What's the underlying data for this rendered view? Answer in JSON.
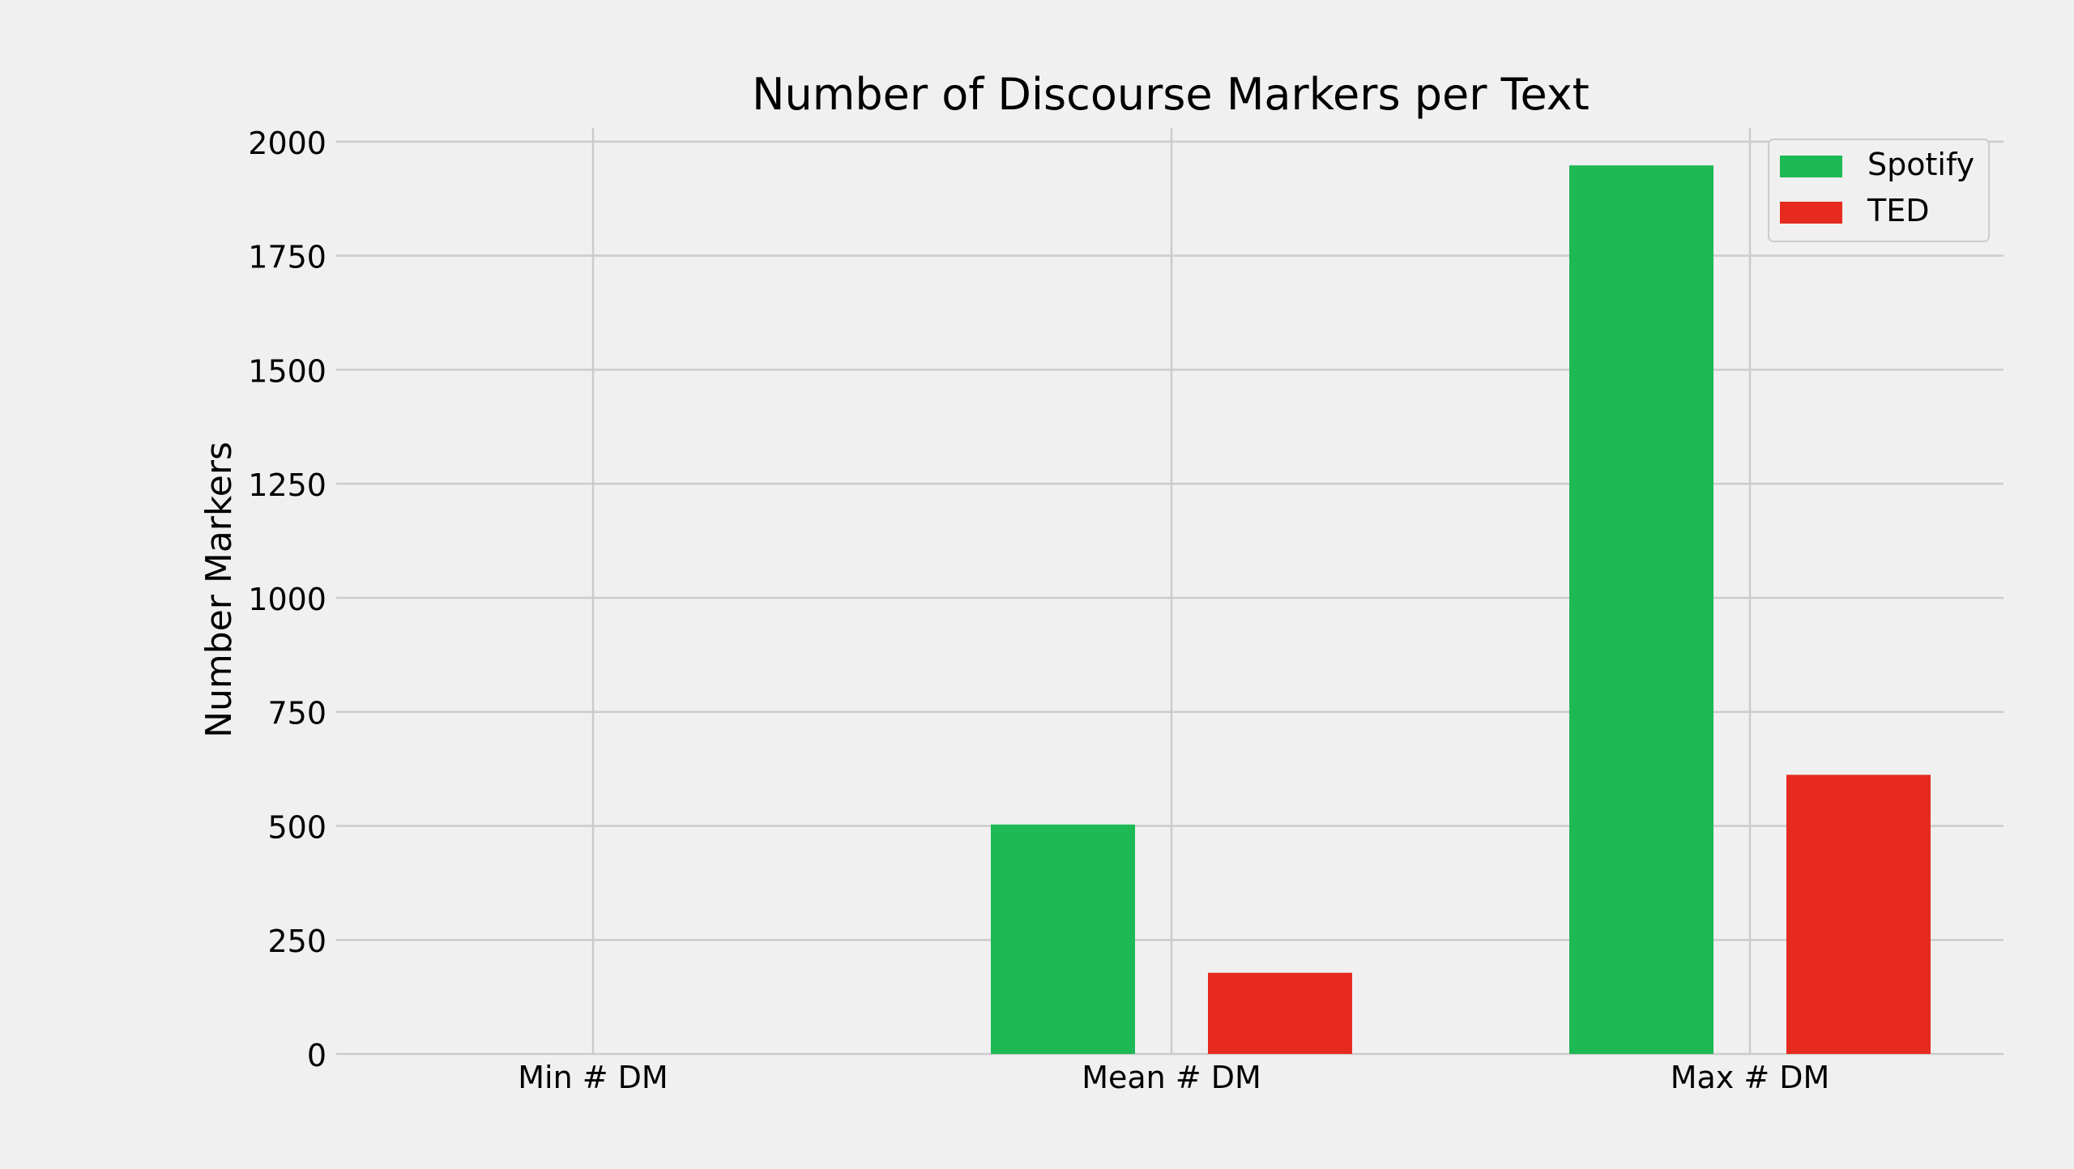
{
  "chart_data": {
    "type": "bar",
    "title": "Number of Discourse Markers per Text",
    "xlabel": "",
    "ylabel": "Number Markers",
    "categories": [
      "Min # DM",
      "Mean # DM",
      "Max # DM"
    ],
    "series": [
      {
        "name": "Spotify",
        "color": "#1db954",
        "values": [
          0,
          503,
          1948
        ]
      },
      {
        "name": "TED",
        "color": "#e62b1e",
        "values": [
          0,
          178,
          612
        ]
      }
    ],
    "ylim": [
      0,
      2030
    ],
    "yticks": [
      0,
      250,
      500,
      750,
      1000,
      1250,
      1500,
      1750,
      2000
    ],
    "grid": true,
    "legend_position": "top-right",
    "background": "#f0f0f0",
    "grid_color": "#cbcbcb"
  }
}
